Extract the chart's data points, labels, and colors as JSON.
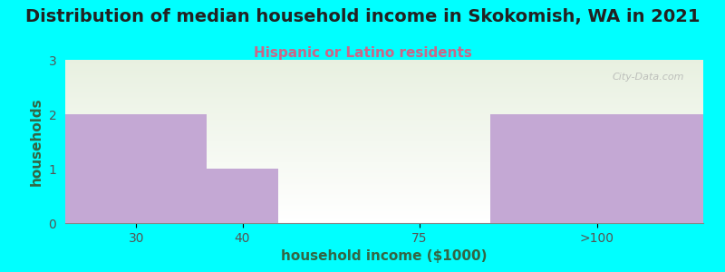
{
  "title": "Distribution of median household income in Skokomish, WA in 2021",
  "subtitle": "Hispanic or Latino residents",
  "xlabel": "household income ($1000)",
  "ylabel": "households",
  "categories": [
    "30",
    "40",
    "75",
    ">100"
  ],
  "values": [
    2,
    1,
    0,
    2
  ],
  "bar_color": "#c4a8d4",
  "background_color": "#00ffff",
  "plot_bg_color_top": "#e8f0e0",
  "plot_bg_color_bottom": "#ffffff",
  "title_fontsize": 14,
  "subtitle_fontsize": 11,
  "subtitle_color": "#cc6688",
  "axis_label_color": "#336644",
  "tick_label_color": "#555555",
  "ylim": [
    0,
    3
  ],
  "yticks": [
    0,
    1,
    2,
    3
  ],
  "watermark": "City-Data.com"
}
